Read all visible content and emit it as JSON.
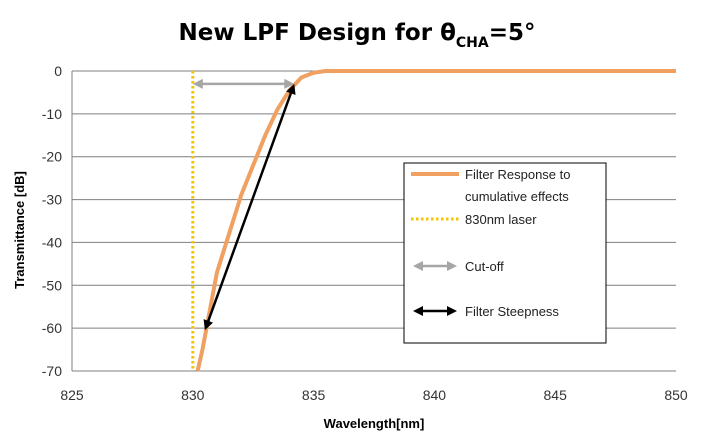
{
  "chart_data": {
    "type": "line",
    "title": "New LPF Design for θ",
    "title_subscript": "CHA",
    "title_suffix": "=5°",
    "xlabel": "Wavelength[nm]",
    "ylabel": "Transmittance [dB]",
    "xlim": [
      825,
      850
    ],
    "ylim": [
      -70,
      0
    ],
    "x_ticks": [
      "825",
      "830",
      "835",
      "840",
      "845",
      "850"
    ],
    "y_ticks": [
      "0",
      "-10",
      "-20",
      "-30",
      "-40",
      "-50",
      "-60",
      "-70"
    ],
    "grid": "horizontal",
    "legend_position": "right",
    "series": [
      {
        "name": "Filter Response to cumulative effects",
        "color": "#f0a060",
        "style": "solid",
        "x": [
          830.2,
          830.4,
          830.7,
          831.0,
          831.5,
          832.0,
          832.5,
          833.0,
          833.5,
          834.0,
          834.5,
          835.0,
          835.5,
          836.0,
          840,
          845,
          850
        ],
        "y": [
          -70,
          -65,
          -56,
          -47,
          -38,
          -29,
          -22,
          -15,
          -9,
          -4.5,
          -1.5,
          -0.4,
          0,
          0,
          0,
          0,
          0
        ]
      },
      {
        "name": "830nm laser",
        "color": "#f5c400",
        "style": "dotted",
        "x": [
          830,
          830
        ],
        "y": [
          0,
          -70
        ]
      }
    ],
    "annotations": [
      {
        "name": "Cut-off",
        "color": "#a6a6a6",
        "style": "double-arrow",
        "x": [
          830,
          834.2
        ],
        "y": [
          -3,
          -3
        ]
      },
      {
        "name": "Filter Steepness",
        "color": "#000000",
        "style": "double-arrow",
        "x": [
          830.5,
          834.2
        ],
        "y": [
          -60.5,
          -3
        ]
      }
    ]
  }
}
